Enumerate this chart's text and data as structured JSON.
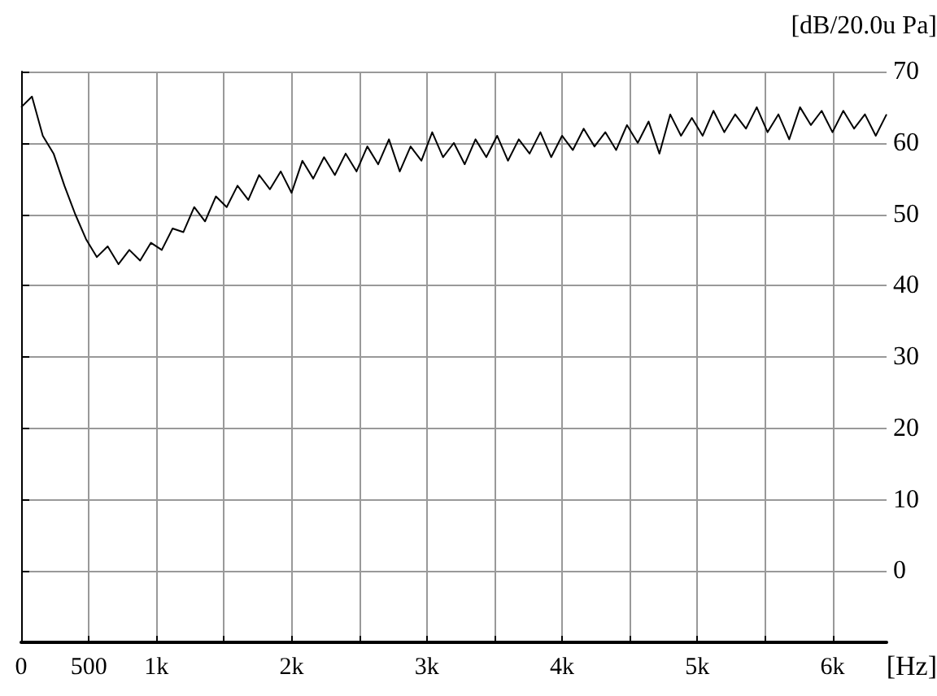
{
  "chart_data": {
    "type": "line",
    "xlabel": "[Hz]",
    "ylabel": "[dB/20.0u Pa]",
    "xlim": [
      0,
      6400
    ],
    "ylim": [
      -10,
      70
    ],
    "xticks": [
      0,
      500,
      {
        "value": 1000,
        "label": "1k"
      },
      {
        "value": 1500,
        "label": null
      },
      {
        "value": 2000,
        "label": "2k"
      },
      {
        "value": 2500,
        "label": null
      },
      {
        "value": 3000,
        "label": "3k"
      },
      {
        "value": 3500,
        "label": null
      },
      {
        "value": 4000,
        "label": "4k"
      },
      {
        "value": 4500,
        "label": null
      },
      {
        "value": 5000,
        "label": "5k"
      },
      {
        "value": 5500,
        "label": null
      },
      {
        "value": 6000,
        "label": "6k"
      }
    ],
    "yticks": [
      0,
      10,
      20,
      30,
      40,
      50,
      60,
      70
    ],
    "grid": true,
    "marker": "none",
    "line_style": "solid",
    "x": [
      0,
      80,
      160,
      240,
      320,
      400,
      480,
      560,
      640,
      720,
      800,
      880,
      960,
      1040,
      1120,
      1200,
      1280,
      1360,
      1440,
      1520,
      1600,
      1680,
      1760,
      1840,
      1920,
      2000,
      2080,
      2160,
      2240,
      2320,
      2400,
      2480,
      2560,
      2640,
      2720,
      2800,
      2880,
      2960,
      3040,
      3120,
      3200,
      3280,
      3360,
      3440,
      3520,
      3600,
      3680,
      3760,
      3840,
      3920,
      4000,
      4080,
      4160,
      4240,
      4320,
      4400,
      4480,
      4560,
      4640,
      4720,
      4800,
      4880,
      4960,
      5040,
      5120,
      5200,
      5280,
      5360,
      5440,
      5520,
      5600,
      5680,
      5760,
      5840,
      5920,
      6000,
      6080,
      6160,
      6240,
      6320,
      6400
    ],
    "series": [
      {
        "color": "#000000",
        "values": [
          65,
          66.5,
          61,
          58.5,
          54,
          50,
          46.5,
          44,
          45.5,
          43,
          45,
          43.5,
          46,
          45,
          48,
          47.5,
          51,
          49,
          52.5,
          51,
          54,
          52,
          55.5,
          53.5,
          56,
          53,
          57.5,
          55,
          58,
          55.5,
          58.5,
          56,
          59.5,
          57,
          60.5,
          56,
          59.5,
          57.5,
          61.5,
          58,
          60,
          57,
          60.5,
          58,
          61,
          57.5,
          60.5,
          58.5,
          61.5,
          58,
          61,
          59,
          62,
          59.5,
          61.5,
          59,
          62.5,
          60,
          63,
          58.5,
          64,
          61,
          63.5,
          61,
          64.5,
          61.5,
          64,
          62,
          65,
          61.5,
          64,
          60.5,
          65,
          62.5,
          64.5,
          61.5,
          64.5,
          62,
          64,
          61,
          64
        ]
      }
    ]
  }
}
